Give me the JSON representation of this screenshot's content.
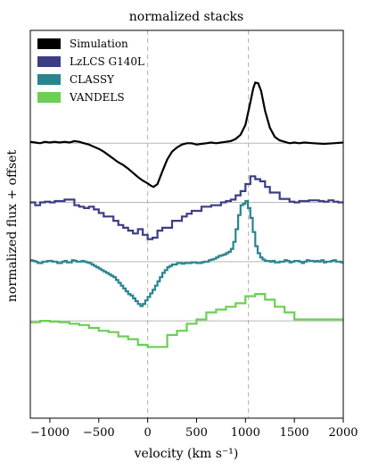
{
  "chart_data": {
    "type": "line",
    "title": "normalized stacks",
    "xlabel": "velocity (km s⁻¹)",
    "ylabel": "normalized flux + offset",
    "xlim": [
      -1200,
      2000
    ],
    "ylim": [
      -3.9,
      1.6
    ],
    "xticks": [
      -1000,
      -500,
      0,
      500,
      1000,
      1500,
      2000
    ],
    "xtick_labels": [
      "−1000",
      "−500",
      "0",
      "500",
      "1000",
      "1500",
      "2000"
    ],
    "yticks_labeled": false,
    "grid": false,
    "legend": "top-left",
    "reference_lines": {
      "vertical_dashed_x": [
        0,
        1030
      ],
      "baselines_y": [
        0,
        -0.84,
        -1.68,
        -2.52
      ]
    },
    "series": [
      {
        "name": "Simulation",
        "color": "#000000",
        "style": "line",
        "offset": 0,
        "points": [
          [
            -1200,
            0.02
          ],
          [
            -1150,
            0.01
          ],
          [
            -1100,
            0.0
          ],
          [
            -1050,
            0.02
          ],
          [
            -1000,
            0.01
          ],
          [
            -950,
            0.02
          ],
          [
            -900,
            0.01
          ],
          [
            -850,
            0.02
          ],
          [
            -800,
            0.01
          ],
          [
            -750,
            0.03
          ],
          [
            -700,
            0.02
          ],
          [
            -650,
            0.0
          ],
          [
            -600,
            -0.02
          ],
          [
            -550,
            -0.05
          ],
          [
            -500,
            -0.08
          ],
          [
            -450,
            -0.12
          ],
          [
            -400,
            -0.17
          ],
          [
            -350,
            -0.22
          ],
          [
            -300,
            -0.27
          ],
          [
            -250,
            -0.31
          ],
          [
            -200,
            -0.36
          ],
          [
            -150,
            -0.42
          ],
          [
            -100,
            -0.48
          ],
          [
            -50,
            -0.53
          ],
          [
            0,
            -0.57
          ],
          [
            30,
            -0.6
          ],
          [
            60,
            -0.62
          ],
          [
            100,
            -0.58
          ],
          [
            150,
            -0.4
          ],
          [
            200,
            -0.23
          ],
          [
            250,
            -0.12
          ],
          [
            300,
            -0.06
          ],
          [
            350,
            -0.02
          ],
          [
            400,
            0.0
          ],
          [
            450,
            0.0
          ],
          [
            500,
            -0.02
          ],
          [
            550,
            -0.01
          ],
          [
            600,
            0.0
          ],
          [
            650,
            0.01
          ],
          [
            700,
            0.0
          ],
          [
            750,
            0.01
          ],
          [
            800,
            0.02
          ],
          [
            850,
            0.03
          ],
          [
            900,
            0.06
          ],
          [
            950,
            0.12
          ],
          [
            1000,
            0.26
          ],
          [
            1050,
            0.58
          ],
          [
            1080,
            0.78
          ],
          [
            1100,
            0.86
          ],
          [
            1130,
            0.85
          ],
          [
            1160,
            0.74
          ],
          [
            1200,
            0.46
          ],
          [
            1250,
            0.22
          ],
          [
            1300,
            0.09
          ],
          [
            1350,
            0.04
          ],
          [
            1400,
            0.02
          ],
          [
            1450,
            0.0
          ],
          [
            1500,
            0.01
          ],
          [
            1550,
            0.0
          ],
          [
            1600,
            0.01
          ],
          [
            1700,
            0.0
          ],
          [
            1800,
            -0.01
          ],
          [
            1900,
            0.0
          ],
          [
            2000,
            0.01
          ]
        ]
      },
      {
        "name": "LzLCS G140L",
        "color": "#3d3d85",
        "style": "step",
        "offset": -0.84,
        "bin_edges": [
          -1200,
          -1150,
          -1100,
          -1050,
          -1000,
          -950,
          -900,
          -850,
          -800,
          -750,
          -700,
          -650,
          -600,
          -550,
          -500,
          -450,
          -400,
          -350,
          -300,
          -250,
          -200,
          -150,
          -100,
          -50,
          0,
          50,
          100,
          150,
          200,
          250,
          300,
          350,
          400,
          450,
          500,
          550,
          600,
          650,
          700,
          750,
          800,
          850,
          900,
          950,
          1000,
          1050,
          1100,
          1150,
          1200,
          1250,
          1300,
          1350,
          1400,
          1450,
          1500,
          1550,
          1600,
          1650,
          1700,
          1750,
          1800,
          1850,
          1900,
          1950,
          2000
        ],
        "values": [
          0.0,
          -0.04,
          0.0,
          0.01,
          0.0,
          0.02,
          0.02,
          0.04,
          0.04,
          -0.04,
          -0.06,
          -0.08,
          -0.06,
          -0.1,
          -0.15,
          -0.2,
          -0.2,
          -0.26,
          -0.32,
          -0.36,
          -0.4,
          -0.44,
          -0.38,
          -0.46,
          -0.52,
          -0.5,
          -0.4,
          -0.36,
          -0.36,
          -0.26,
          -0.26,
          -0.2,
          -0.16,
          -0.12,
          -0.12,
          -0.06,
          -0.06,
          -0.04,
          -0.04,
          0.0,
          0.02,
          0.04,
          0.1,
          0.16,
          0.26,
          0.37,
          0.33,
          0.3,
          0.22,
          0.14,
          0.14,
          0.05,
          0.05,
          0.01,
          0.0,
          0.02,
          0.02,
          0.03,
          0.03,
          0.02,
          0.01,
          0.03,
          0.01,
          0.0
        ]
      },
      {
        "name": "CLASSY",
        "color": "#29848f",
        "style": "step",
        "offset": -1.68,
        "bin_edges": [
          -1200,
          -1175,
          -1150,
          -1125,
          -1100,
          -1075,
          -1050,
          -1025,
          -1000,
          -975,
          -950,
          -925,
          -900,
          -875,
          -850,
          -825,
          -800,
          -775,
          -750,
          -725,
          -700,
          -675,
          -650,
          -625,
          -600,
          -575,
          -550,
          -525,
          -500,
          -475,
          -450,
          -425,
          -400,
          -375,
          -350,
          -325,
          -300,
          -275,
          -250,
          -225,
          -200,
          -175,
          -150,
          -125,
          -100,
          -75,
          -50,
          -25,
          0,
          25,
          50,
          75,
          100,
          125,
          150,
          175,
          200,
          225,
          250,
          275,
          300,
          325,
          350,
          375,
          400,
          425,
          450,
          475,
          500,
          525,
          550,
          575,
          600,
          625,
          650,
          675,
          700,
          725,
          750,
          775,
          800,
          825,
          850,
          875,
          900,
          925,
          950,
          975,
          1000,
          1025,
          1050,
          1075,
          1100,
          1125,
          1150,
          1175,
          1200,
          1225,
          1250,
          1275,
          1300,
          1325,
          1350,
          1375,
          1400,
          1425,
          1450,
          1475,
          1500,
          1525,
          1550,
          1575,
          1600,
          1625,
          1650,
          1675,
          1700,
          1725,
          1750,
          1775,
          1800,
          1825,
          1850,
          1875,
          1900,
          1925,
          1950,
          1975,
          2000
        ],
        "values": [
          0.02,
          0.01,
          0.0,
          -0.02,
          -0.02,
          0.0,
          0.0,
          0.01,
          0.01,
          0.0,
          0.0,
          -0.02,
          -0.02,
          0.0,
          0.01,
          -0.01,
          -0.01,
          0.02,
          0.01,
          0.0,
          0.0,
          0.01,
          0.0,
          -0.01,
          -0.02,
          -0.04,
          -0.06,
          -0.08,
          -0.1,
          -0.12,
          -0.14,
          -0.16,
          -0.18,
          -0.2,
          -0.22,
          -0.26,
          -0.3,
          -0.34,
          -0.38,
          -0.42,
          -0.46,
          -0.48,
          -0.52,
          -0.56,
          -0.6,
          -0.63,
          -0.6,
          -0.55,
          -0.5,
          -0.45,
          -0.4,
          -0.34,
          -0.28,
          -0.22,
          -0.16,
          -0.12,
          -0.08,
          -0.06,
          -0.04,
          -0.04,
          -0.02,
          -0.02,
          -0.03,
          -0.02,
          -0.02,
          -0.02,
          -0.01,
          -0.01,
          -0.02,
          -0.02,
          -0.01,
          0.0,
          0.0,
          0.02,
          0.03,
          0.04,
          0.06,
          0.08,
          0.09,
          0.1,
          0.12,
          0.14,
          0.18,
          0.28,
          0.46,
          0.66,
          0.8,
          0.82,
          0.86,
          0.76,
          0.62,
          0.42,
          0.22,
          0.12,
          0.06,
          0.03,
          0.01,
          0.01,
          0.0,
          0.01,
          -0.01,
          -0.01,
          0.0,
          0.0,
          0.02,
          0.01,
          -0.01,
          0.0,
          0.01,
          0.01,
          0.0,
          -0.02,
          0.0,
          0.02,
          0.01,
          0.01,
          0.0,
          0.01,
          0.0,
          0.02,
          -0.01,
          0.0,
          0.0,
          0.01,
          0.02,
          0.0,
          0.0,
          -0.01
        ]
      },
      {
        "name": "VANDELS",
        "color": "#6acf54",
        "style": "step",
        "offset": -2.52,
        "bin_edges": [
          -1200,
          -1100,
          -1000,
          -900,
          -800,
          -700,
          -600,
          -500,
          -400,
          -300,
          -200,
          -100,
          0,
          100,
          200,
          300,
          400,
          500,
          600,
          700,
          800,
          900,
          1000,
          1100,
          1200,
          1300,
          1400,
          1500,
          1600,
          1700,
          1800,
          1900,
          2000
        ],
        "values": [
          -0.02,
          0.0,
          -0.01,
          -0.02,
          -0.04,
          -0.06,
          -0.1,
          -0.14,
          -0.16,
          -0.22,
          -0.26,
          -0.34,
          -0.37,
          -0.37,
          -0.2,
          -0.14,
          -0.04,
          0.02,
          0.12,
          0.16,
          0.2,
          0.25,
          0.35,
          0.38,
          0.3,
          0.2,
          0.12,
          0.02,
          0.02,
          0.02,
          0.02,
          0.02
        ]
      }
    ]
  }
}
